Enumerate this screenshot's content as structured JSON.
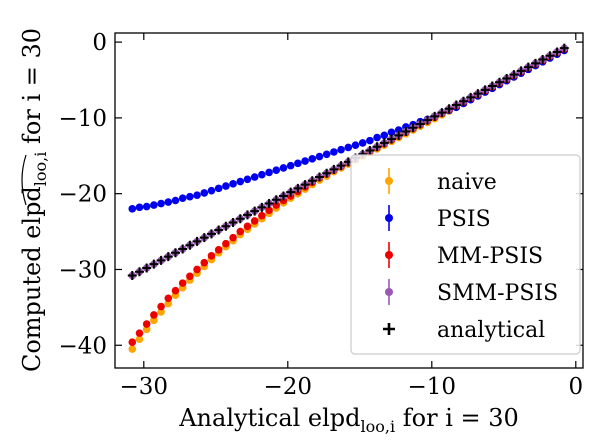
{
  "chart_data": {
    "type": "scatter",
    "xlabel": "Analytical elpd",
    "xlabel_sub": "loo,i",
    "xlabel_tail": " for i = 30",
    "ylabel_pre": "Computed ",
    "ylabel_main": "elpd",
    "ylabel_sub": "loo,i",
    "ylabel_tail": " for i = 30",
    "xlim": [
      -32,
      0.5
    ],
    "ylim": [
      -43,
      1.2
    ],
    "xticks": [
      -30,
      -20,
      -10,
      0
    ],
    "xtick_labels": [
      "−30",
      "−20",
      "−10",
      "0"
    ],
    "yticks": [
      0,
      -10,
      -20,
      -30,
      -40
    ],
    "ytick_labels": [
      "0",
      "−10",
      "−20",
      "−30",
      "−40"
    ],
    "legend_position": "lower-right",
    "series": [
      {
        "name": "naive",
        "color": "#FFA500",
        "marker": "circle",
        "x": [
          -30.8,
          -30.3,
          -29.8,
          -29.3,
          -28.8,
          -28.3,
          -27.8,
          -27.3,
          -26.8,
          -26.3,
          -25.8,
          -25.3,
          -24.8,
          -24.3,
          -23.8,
          -23.3,
          -22.8,
          -22.3,
          -21.8,
          -21.3,
          -20.8,
          -20.3,
          -19.8,
          -19.3,
          -18.8,
          -18.3,
          -17.8,
          -17.3,
          -16.8,
          -16.3,
          -15.8,
          -15.3,
          -14.8,
          -14.3,
          -13.8,
          -13.3,
          -12.8,
          -12.3,
          -11.8,
          -11.3,
          -10.8,
          -10.3,
          -9.8,
          -9.3,
          -8.8,
          -8.3,
          -7.8,
          -7.3,
          -6.8,
          -6.3,
          -5.8,
          -5.3,
          -4.8,
          -4.3,
          -3.8,
          -3.3,
          -2.8,
          -2.3,
          -1.8,
          -1.3,
          -0.8
        ],
        "y": [
          -40.5,
          -39.2,
          -37.9,
          -36.7,
          -35.6,
          -34.5,
          -33.4,
          -32.4,
          -31.4,
          -30.5,
          -29.6,
          -28.7,
          -27.8,
          -27.0,
          -26.2,
          -25.4,
          -24.7,
          -24.0,
          -23.3,
          -22.6,
          -21.9,
          -21.2,
          -20.6,
          -20.0,
          -19.4,
          -18.8,
          -18.2,
          -17.7,
          -17.1,
          -16.6,
          -16.1,
          -15.6,
          -15.1,
          -14.6,
          -14.1,
          -13.6,
          -13.1,
          -12.6,
          -12.1,
          -11.6,
          -11.1,
          -10.6,
          -10.1,
          -9.6,
          -9.1,
          -8.6,
          -8.1,
          -7.6,
          -7.1,
          -6.6,
          -6.1,
          -5.6,
          -5.1,
          -4.6,
          -4.1,
          -3.6,
          -3.1,
          -2.6,
          -2.1,
          -1.6,
          -1.1
        ]
      },
      {
        "name": "PSIS",
        "color": "#0000EE",
        "marker": "circle",
        "x": [
          -30.8,
          -30.3,
          -29.8,
          -29.3,
          -28.8,
          -28.3,
          -27.8,
          -27.3,
          -26.8,
          -26.3,
          -25.8,
          -25.3,
          -24.8,
          -24.3,
          -23.8,
          -23.3,
          -22.8,
          -22.3,
          -21.8,
          -21.3,
          -20.8,
          -20.3,
          -19.8,
          -19.3,
          -18.8,
          -18.3,
          -17.8,
          -17.3,
          -16.8,
          -16.3,
          -15.8,
          -15.3,
          -14.8,
          -14.3,
          -13.8,
          -13.3,
          -12.8,
          -12.3,
          -11.8,
          -11.3,
          -10.8,
          -10.3,
          -9.8,
          -9.3,
          -8.8,
          -8.3,
          -7.8,
          -7.3,
          -6.8,
          -6.3,
          -5.8,
          -5.3,
          -4.8,
          -4.3,
          -3.8,
          -3.3,
          -2.8,
          -2.3,
          -1.8,
          -1.3,
          -0.8
        ],
        "y": [
          -22.0,
          -21.8,
          -21.7,
          -21.5,
          -21.3,
          -21.1,
          -20.9,
          -20.6,
          -20.4,
          -20.2,
          -19.9,
          -19.6,
          -19.3,
          -19.0,
          -18.7,
          -18.4,
          -18.1,
          -17.8,
          -17.5,
          -17.2,
          -16.9,
          -16.6,
          -16.3,
          -16.0,
          -15.7,
          -15.4,
          -15.1,
          -14.8,
          -14.5,
          -14.2,
          -13.9,
          -13.6,
          -13.3,
          -13.0,
          -12.6,
          -12.3,
          -11.9,
          -11.6,
          -11.2,
          -10.9,
          -10.5,
          -10.2,
          -9.8,
          -9.4,
          -9.0,
          -8.6,
          -8.1,
          -7.6,
          -7.1,
          -6.6,
          -6.1,
          -5.6,
          -5.1,
          -4.6,
          -4.1,
          -3.6,
          -3.1,
          -2.6,
          -2.1,
          -1.6,
          -1.1
        ]
      },
      {
        "name": "MM-PSIS",
        "color": "#EE0000",
        "marker": "circle",
        "x": [
          -30.8,
          -30.3,
          -29.8,
          -29.3,
          -28.8,
          -28.3,
          -27.8,
          -27.3,
          -26.8,
          -26.3,
          -25.8,
          -25.3,
          -24.8,
          -24.3,
          -23.8,
          -23.3,
          -22.8,
          -22.3,
          -21.8,
          -21.3,
          -20.8,
          -20.3,
          -19.8,
          -19.3,
          -18.8,
          -18.3,
          -17.8,
          -17.3,
          -16.8,
          -16.3,
          -15.8,
          -15.3,
          -14.8,
          -14.3,
          -13.8,
          -13.3,
          -12.8,
          -12.3,
          -11.8,
          -11.3,
          -10.8,
          -10.3,
          -9.8,
          -9.3,
          -8.8,
          -8.3,
          -7.8,
          -7.3,
          -6.8,
          -6.3,
          -5.8,
          -5.3,
          -4.8,
          -4.3,
          -3.8,
          -3.3,
          -2.8,
          -2.3,
          -1.8,
          -1.3,
          -0.8
        ],
        "y": [
          -39.6,
          -38.4,
          -37.2,
          -36.0,
          -34.9,
          -33.8,
          -32.8,
          -31.8,
          -30.9,
          -30.0,
          -29.1,
          -28.2,
          -27.4,
          -26.6,
          -25.8,
          -25.0,
          -24.3,
          -23.6,
          -22.9,
          -22.2,
          -21.5,
          -20.9,
          -20.3,
          -19.7,
          -19.1,
          -18.5,
          -17.9,
          -17.4,
          -16.9,
          -16.4,
          -15.9,
          -15.4,
          -14.9,
          -14.4,
          -13.9,
          -13.4,
          -12.9,
          -12.4,
          -11.9,
          -11.4,
          -10.9,
          -10.4,
          -9.9,
          -9.4,
          -8.9,
          -8.4,
          -7.9,
          -7.4,
          -6.9,
          -6.4,
          -5.9,
          -5.4,
          -4.9,
          -4.4,
          -3.9,
          -3.4,
          -2.9,
          -2.4,
          -1.9,
          -1.4,
          -0.9
        ]
      },
      {
        "name": "SMM-PSIS",
        "color": "#9B59B6",
        "marker": "circle",
        "x": [
          -30.8,
          -30.3,
          -29.8,
          -29.3,
          -28.8,
          -28.3,
          -27.8,
          -27.3,
          -26.8,
          -26.3,
          -25.8,
          -25.3,
          -24.8,
          -24.3,
          -23.8,
          -23.3,
          -22.8,
          -22.3,
          -21.8,
          -21.3,
          -20.8,
          -20.3,
          -19.8,
          -19.3,
          -18.8,
          -18.3,
          -17.8,
          -17.3,
          -16.8,
          -16.3,
          -15.8,
          -15.3,
          -14.8,
          -14.3,
          -13.8,
          -13.3,
          -12.8,
          -12.3,
          -11.8,
          -11.3,
          -10.8,
          -10.3,
          -9.8,
          -9.3,
          -8.8,
          -8.3,
          -7.8,
          -7.3,
          -6.8,
          -6.3,
          -5.8,
          -5.3,
          -4.8,
          -4.3,
          -3.8,
          -3.3,
          -2.8,
          -2.3,
          -1.8,
          -1.3,
          -0.8
        ],
        "y": [
          -30.8,
          -30.3,
          -29.8,
          -29.3,
          -28.8,
          -28.3,
          -27.8,
          -27.3,
          -26.8,
          -26.3,
          -25.8,
          -25.3,
          -24.8,
          -24.3,
          -23.8,
          -23.3,
          -22.8,
          -22.3,
          -21.8,
          -21.3,
          -20.8,
          -20.3,
          -19.8,
          -19.3,
          -18.8,
          -18.3,
          -17.8,
          -17.3,
          -16.8,
          -16.3,
          -15.8,
          -15.3,
          -14.8,
          -14.3,
          -13.8,
          -13.3,
          -12.8,
          -12.3,
          -11.8,
          -11.3,
          -10.8,
          -10.3,
          -9.8,
          -9.3,
          -8.8,
          -8.3,
          -7.8,
          -7.3,
          -6.8,
          -6.3,
          -5.8,
          -5.3,
          -4.8,
          -4.3,
          -3.8,
          -3.3,
          -2.8,
          -2.3,
          -1.8,
          -1.3,
          -0.8
        ]
      },
      {
        "name": "analytical",
        "color": "#000000",
        "marker": "plus",
        "x": [
          -30.8,
          -30.3,
          -29.8,
          -29.3,
          -28.8,
          -28.3,
          -27.8,
          -27.3,
          -26.8,
          -26.3,
          -25.8,
          -25.3,
          -24.8,
          -24.3,
          -23.8,
          -23.3,
          -22.8,
          -22.3,
          -21.8,
          -21.3,
          -20.8,
          -20.3,
          -19.8,
          -19.3,
          -18.8,
          -18.3,
          -17.8,
          -17.3,
          -16.8,
          -16.3,
          -15.8,
          -15.3,
          -14.8,
          -14.3,
          -13.8,
          -13.3,
          -12.8,
          -12.3,
          -11.8,
          -11.3,
          -10.8,
          -10.3,
          -9.8,
          -9.3,
          -8.8,
          -8.3,
          -7.8,
          -7.3,
          -6.8,
          -6.3,
          -5.8,
          -5.3,
          -4.8,
          -4.3,
          -3.8,
          -3.3,
          -2.8,
          -2.3,
          -1.8,
          -1.3,
          -0.8
        ],
        "y": [
          -30.8,
          -30.3,
          -29.8,
          -29.3,
          -28.8,
          -28.3,
          -27.8,
          -27.3,
          -26.8,
          -26.3,
          -25.8,
          -25.3,
          -24.8,
          -24.3,
          -23.8,
          -23.3,
          -22.8,
          -22.3,
          -21.8,
          -21.3,
          -20.8,
          -20.3,
          -19.8,
          -19.3,
          -18.8,
          -18.3,
          -17.8,
          -17.3,
          -16.8,
          -16.3,
          -15.8,
          -15.3,
          -14.8,
          -14.3,
          -13.8,
          -13.3,
          -12.8,
          -12.3,
          -11.8,
          -11.3,
          -10.8,
          -10.3,
          -9.8,
          -9.3,
          -8.8,
          -8.3,
          -7.8,
          -7.3,
          -6.8,
          -6.3,
          -5.8,
          -5.3,
          -4.8,
          -4.3,
          -3.8,
          -3.3,
          -2.8,
          -2.3,
          -1.8,
          -1.3,
          -0.8
        ]
      }
    ]
  }
}
